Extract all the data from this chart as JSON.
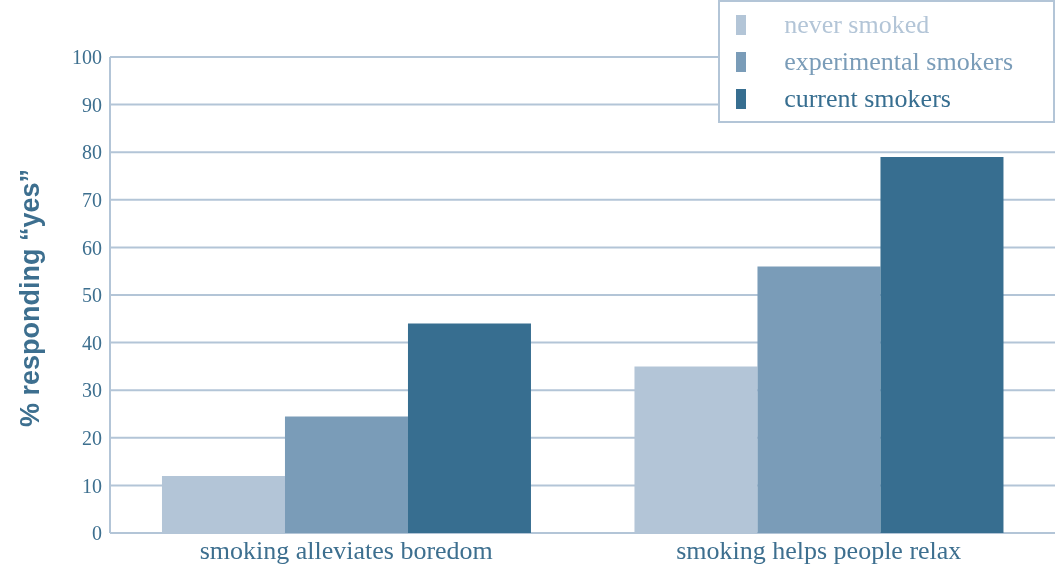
{
  "chart_data": {
    "type": "bar",
    "ylabel": "% responding “yes”",
    "categories": [
      "smoking alleviates boredom",
      "smoking helps people relax"
    ],
    "series": [
      {
        "name": "never smoked",
        "color": "#b3c5d7",
        "values": [
          12,
          35
        ]
      },
      {
        "name": "experimental smokers",
        "color": "#7a9cb8",
        "values": [
          24.5,
          56
        ]
      },
      {
        "name": "current smokers",
        "color": "#376e90",
        "values": [
          44,
          79
        ]
      }
    ],
    "ylim": [
      0,
      100
    ],
    "yticks": [
      0,
      10,
      20,
      30,
      40,
      50,
      60,
      70,
      80,
      90,
      100
    ],
    "grid": "y",
    "legend": "top right"
  }
}
